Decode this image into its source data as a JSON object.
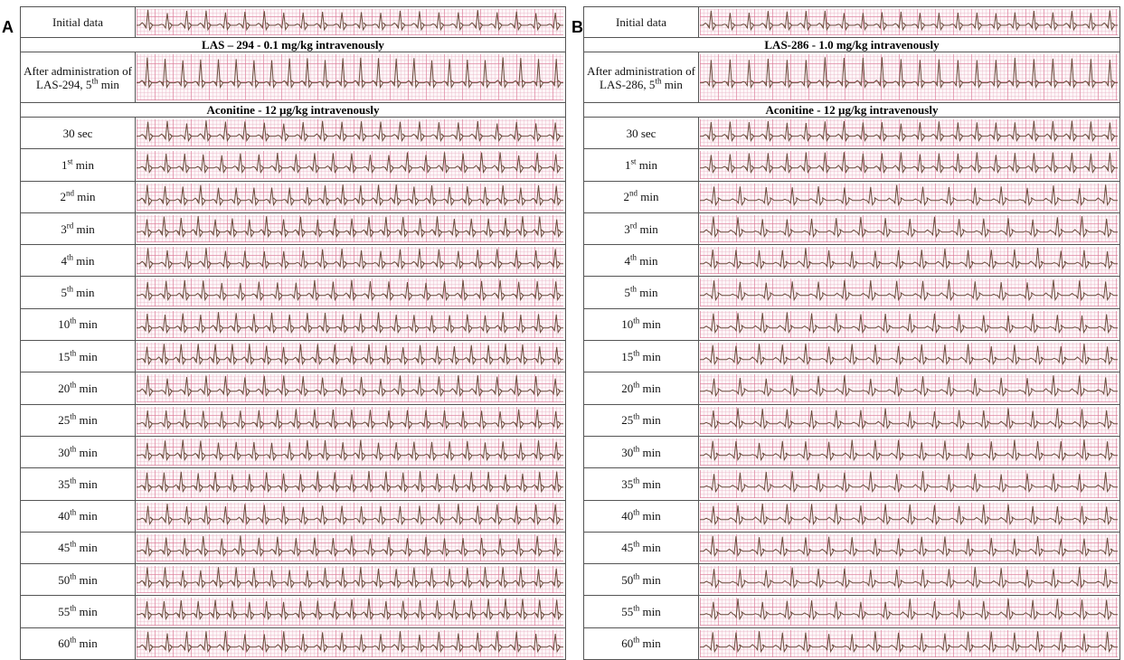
{
  "panels": [
    {
      "letter": "A",
      "rows": [
        {
          "label": "Initial data"
        },
        {
          "heading": "LAS – 294 - 0.1 mg/kg intravenously"
        },
        {
          "label": "After administration of LAS-294, 5",
          "sup": "th",
          "tail": " min"
        },
        {
          "heading": "Aconitine - 12 µg/kg intravenously"
        },
        {
          "label": "30 sec"
        },
        {
          "label": "1",
          "sup": "st",
          "tail": " min"
        },
        {
          "label": "2",
          "sup": "nd",
          "tail": " min"
        },
        {
          "label": "3",
          "sup": "rd",
          "tail": " min"
        },
        {
          "label": "4",
          "sup": "th",
          "tail": " min"
        },
        {
          "label": "5",
          "sup": "th",
          "tail": " min"
        },
        {
          "label": "10",
          "sup": "th",
          "tail": " min"
        },
        {
          "label": "15",
          "sup": "th",
          "tail": " min"
        },
        {
          "label": "20",
          "sup": "th",
          "tail": " min"
        },
        {
          "label": "25",
          "sup": "th",
          "tail": " min"
        },
        {
          "label": "30",
          "sup": "th",
          "tail": " min"
        },
        {
          "label": "35",
          "sup": "th",
          "tail": " min"
        },
        {
          "label": "40",
          "sup": "th",
          "tail": " min"
        },
        {
          "label": "45",
          "sup": "th",
          "tail": " min"
        },
        {
          "label": "50",
          "sup": "th",
          "tail": " min"
        },
        {
          "label": "55",
          "sup": "th",
          "tail": " min"
        },
        {
          "label": "60",
          "sup": "th",
          "tail": " min"
        }
      ]
    },
    {
      "letter": "B",
      "rows": [
        {
          "label": "Initial data"
        },
        {
          "heading": "LAS-286 - 1.0 mg/kg intravenously"
        },
        {
          "label": "After administration of LAS-286, 5",
          "sup": "th",
          "tail": " min"
        },
        {
          "heading": "Aconitine - 12 µg/kg intravenously"
        },
        {
          "label": "30 sec"
        },
        {
          "label": "1",
          "sup": "st",
          "tail": " min"
        },
        {
          "label": "2",
          "sup": "nd",
          "tail": " min"
        },
        {
          "label": "3",
          "sup": "rd",
          "tail": " min"
        },
        {
          "label": "4",
          "sup": "th",
          "tail": " min"
        },
        {
          "label": "5",
          "sup": "th",
          "tail": " min"
        },
        {
          "label": "10",
          "sup": "th",
          "tail": " min"
        },
        {
          "label": "15",
          "sup": "th",
          "tail": " min"
        },
        {
          "label": "20",
          "sup": "th",
          "tail": " min"
        },
        {
          "label": "25",
          "sup": "th",
          "tail": " min"
        },
        {
          "label": "30",
          "sup": "th",
          "tail": " min"
        },
        {
          "label": "35",
          "sup": "th",
          "tail": " min"
        },
        {
          "label": "40",
          "sup": "th",
          "tail": " min"
        },
        {
          "label": "45",
          "sup": "th",
          "tail": " min"
        },
        {
          "label": "50",
          "sup": "th",
          "tail": " min"
        },
        {
          "label": "55",
          "sup": "th",
          "tail": " min"
        },
        {
          "label": "60",
          "sup": "th",
          "tail": " min"
        }
      ]
    }
  ]
}
